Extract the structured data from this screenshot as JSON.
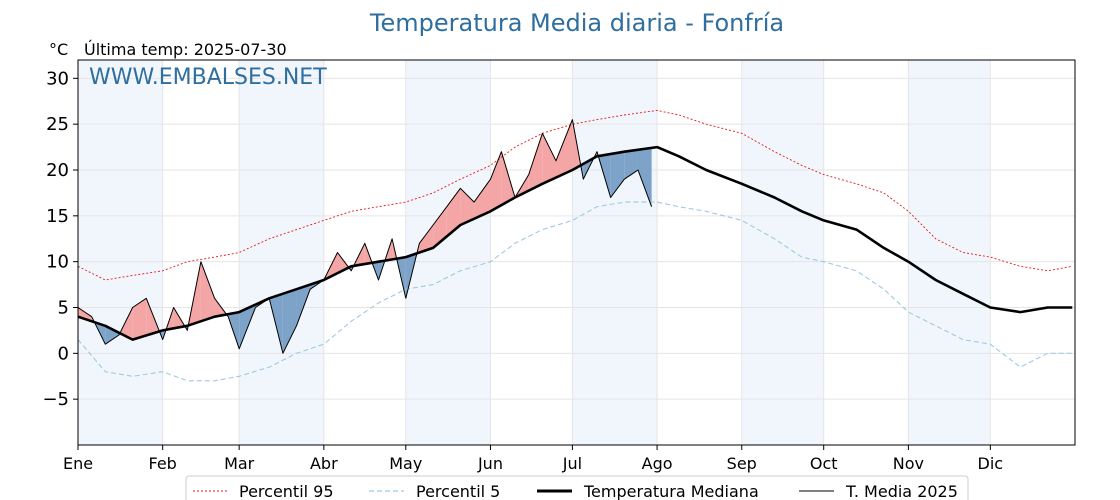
{
  "chart_data": {
    "type": "line",
    "title": "Temperatura Media diaria - Fonfría",
    "unit_label": "°C",
    "last_temp_label": "Última temp: 2025-07-30",
    "watermark": "WWW.EMBALSES.NET",
    "ylim": [
      -10,
      32
    ],
    "yticks": [
      -5,
      0,
      5,
      10,
      15,
      20,
      25,
      30
    ],
    "ytick_labels": [
      "−5",
      "0",
      "5",
      "10",
      "15",
      "20",
      "25",
      "30"
    ],
    "xlim": [
      0,
      365
    ],
    "month_labels": [
      "Ene",
      "Feb",
      "Mar",
      "Abr",
      "May",
      "Jun",
      "Jul",
      "Ago",
      "Sep",
      "Oct",
      "Nov",
      "Dic"
    ],
    "month_start_days": [
      0,
      31,
      59,
      90,
      120,
      151,
      181,
      212,
      243,
      273,
      304,
      334
    ],
    "grid": true,
    "legend_position": "bottom",
    "colors": {
      "title": "#2f6e9e",
      "p95": "#e31a1c",
      "p5": "#9ecae1",
      "median": "#000000",
      "year": "#000000",
      "above": "#f4a6a6",
      "above_strong": "#e34a4a",
      "below": "#7da3c9",
      "below_strong": "#1c5a99",
      "band": "#f1f6fc",
      "grid": "#e5e5e5",
      "watermark": "#2f6e9e"
    },
    "series": [
      {
        "name": "Percentil 95",
        "key": "p95",
        "style": "dotted",
        "x": [
          0,
          10,
          20,
          31,
          40,
          50,
          59,
          70,
          80,
          90,
          100,
          110,
          120,
          130,
          140,
          151,
          160,
          170,
          181,
          190,
          200,
          212,
          220,
          230,
          243,
          255,
          265,
          273,
          285,
          295,
          304,
          314,
          324,
          334,
          345,
          355,
          364
        ],
        "values": [
          9.5,
          8.0,
          8.5,
          9.0,
          10.0,
          10.5,
          11.0,
          12.5,
          13.5,
          14.5,
          15.5,
          16.0,
          16.5,
          17.5,
          19.0,
          20.5,
          22.5,
          24.0,
          25.0,
          25.5,
          26.0,
          26.5,
          26.0,
          25.0,
          24.0,
          22.0,
          20.5,
          19.5,
          18.5,
          17.5,
          15.5,
          12.5,
          11.0,
          10.5,
          9.5,
          9.0,
          9.5
        ]
      },
      {
        "name": "Percentil 5",
        "key": "p5",
        "style": "dashed",
        "x": [
          0,
          10,
          20,
          31,
          40,
          50,
          59,
          70,
          80,
          90,
          100,
          110,
          120,
          130,
          140,
          151,
          160,
          170,
          181,
          190,
          200,
          212,
          220,
          230,
          243,
          255,
          265,
          273,
          285,
          295,
          304,
          314,
          324,
          334,
          345,
          355,
          364
        ],
        "values": [
          1.5,
          -2.0,
          -2.5,
          -2.0,
          -3.0,
          -3.0,
          -2.5,
          -1.5,
          0.0,
          1.0,
          3.5,
          5.5,
          7.0,
          7.5,
          9.0,
          10.0,
          12.0,
          13.5,
          14.5,
          16.0,
          16.5,
          16.5,
          16.0,
          15.5,
          14.5,
          12.5,
          10.5,
          10.0,
          9.0,
          7.0,
          4.5,
          3.0,
          1.5,
          1.0,
          -1.5,
          0.0,
          0.0
        ]
      },
      {
        "name": "Temperatura Mediana",
        "key": "median",
        "style": "solid-thick",
        "x": [
          0,
          10,
          20,
          31,
          40,
          50,
          59,
          70,
          80,
          90,
          100,
          110,
          120,
          130,
          140,
          151,
          160,
          170,
          181,
          190,
          200,
          212,
          220,
          230,
          243,
          255,
          265,
          273,
          285,
          295,
          304,
          314,
          324,
          334,
          345,
          355,
          364
        ],
        "values": [
          4.0,
          3.0,
          1.5,
          2.5,
          3.0,
          4.0,
          4.5,
          6.0,
          7.0,
          8.0,
          9.5,
          10.0,
          10.5,
          11.5,
          14.0,
          15.5,
          17.0,
          18.5,
          20.0,
          21.5,
          22.0,
          22.5,
          21.5,
          20.0,
          18.5,
          17.0,
          15.5,
          14.5,
          13.5,
          11.5,
          10.0,
          8.0,
          6.5,
          5.0,
          4.5,
          5.0,
          5.0
        ]
      },
      {
        "name": "T. Media 2025",
        "key": "year",
        "style": "solid",
        "x": [
          0,
          5,
          10,
          15,
          20,
          25,
          31,
          35,
          40,
          45,
          50,
          55,
          59,
          65,
          70,
          75,
          80,
          85,
          90,
          95,
          100,
          105,
          110,
          115,
          120,
          125,
          130,
          135,
          140,
          145,
          151,
          155,
          160,
          165,
          170,
          175,
          181,
          185,
          190,
          195,
          200,
          205,
          210
        ],
        "values": [
          5.0,
          4.0,
          1.0,
          2.0,
          5.0,
          6.0,
          1.5,
          5.0,
          2.5,
          10.0,
          6.0,
          4.0,
          0.5,
          5.0,
          6.0,
          0.0,
          3.0,
          7.0,
          8.0,
          11.0,
          9.0,
          12.0,
          8.0,
          12.5,
          6.0,
          12.0,
          14.0,
          16.0,
          18.0,
          16.5,
          19.0,
          22.0,
          17.0,
          19.5,
          24.0,
          21.0,
          25.5,
          19.0,
          22.0,
          17.0,
          19.0,
          20.0,
          16.0
        ]
      }
    ]
  }
}
